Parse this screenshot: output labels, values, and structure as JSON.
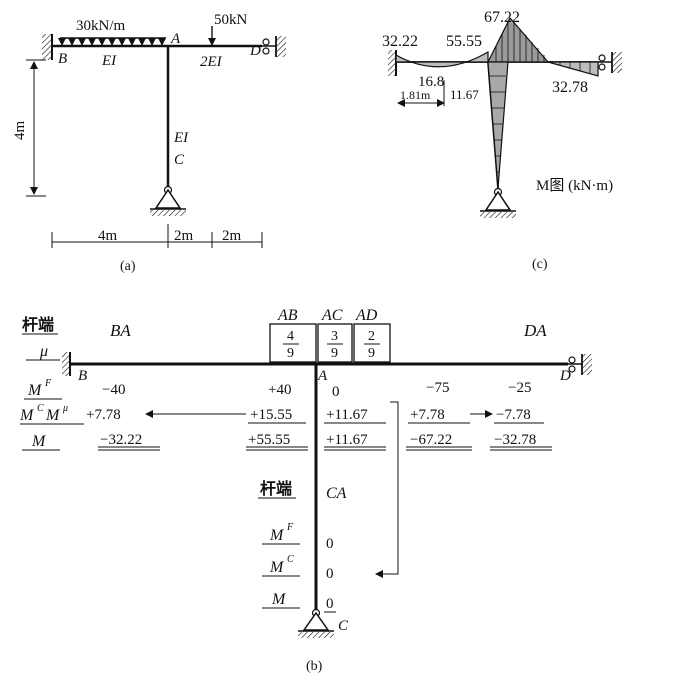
{
  "fig_a": {
    "load_udl": "30kN/m",
    "load_point": "50kN",
    "node_A": "A",
    "node_B": "B",
    "node_C": "C",
    "node_D": "D",
    "stiff_BA": "EI",
    "stiff_AD": "2EI",
    "stiff_AC": "EI",
    "height": "4m",
    "span_BA": "4m",
    "span_AD_1": "2m",
    "span_AD_2": "2m",
    "caption": "(a)"
  },
  "fig_c": {
    "m_B": "32.22",
    "m_A_left": "55.55",
    "m_A_right": "67.22",
    "m_mid_BA": "16.8",
    "m_dist": "1.81m",
    "m_A_col": "11.67",
    "m_D": "32.78",
    "diagram_title": "M图 (kN·m)",
    "caption": "(c)"
  },
  "fig_b": {
    "row_member": "杆端",
    "row_mu": "μ",
    "row_MF": "M",
    "row_MF_sup": "F",
    "row_MCMmu": "M",
    "row_MCMmu_sup": "C",
    "row_MCMmu_2": "M",
    "row_MCMmu_2_sup": "μ",
    "row_M": "M",
    "end_BA": "BA",
    "end_DA": "DA",
    "hdr_AB": "AB",
    "hdr_AC": "AC",
    "hdr_AD": "AD",
    "mu_AB_num": "4",
    "mu_AB_den": "9",
    "mu_AC_num": "3",
    "mu_AC_den": "9",
    "mu_AD_num": "2",
    "mu_AD_den": "9",
    "node_A": "A",
    "node_B": "B",
    "node_C": "C",
    "node_D": "D",
    "BA_MF": "−40",
    "BA_MC": "+7.78",
    "BA_M": "−32.22",
    "AB_MF": "+40",
    "AB_Mmu": "+15.55",
    "AB_M": "+55.55",
    "AC_MF": "0",
    "AC_Mmu": "+11.67",
    "AC_M": "+11.67",
    "AD_MF": "−75",
    "AD_Mmu": "+7.78",
    "AD_M": "−67.22",
    "DA_MF": "−25",
    "DA_MC": "−7.78",
    "DA_M": "−32.78",
    "col_member": "杆端",
    "col_end": "CA",
    "col_MF": "M",
    "col_MF_sup": "F",
    "col_MC": "M",
    "col_MC_sup": "C",
    "col_M": "M",
    "CA_MF": "0",
    "CA_MC": "0",
    "CA_M": "0",
    "caption": "(b)"
  }
}
